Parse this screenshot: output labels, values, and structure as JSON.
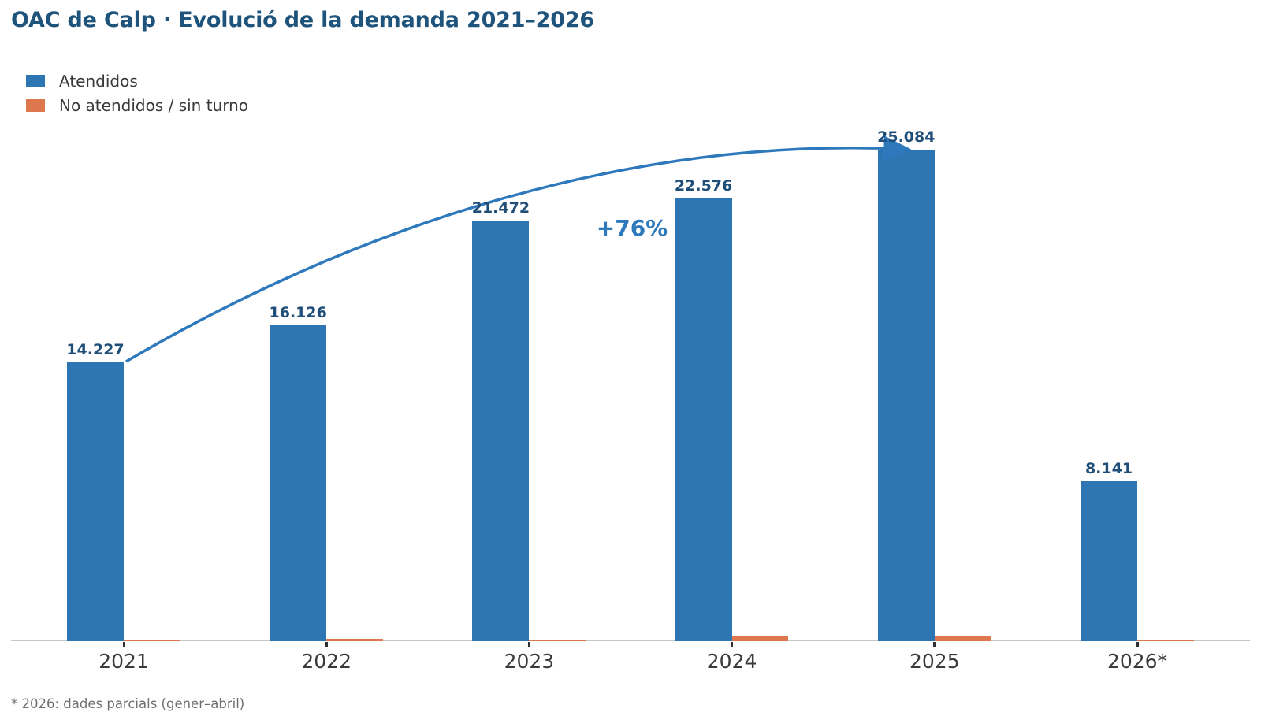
{
  "chart": {
    "title": "OAC de Calp · Evolució de la demanda 2021–2026",
    "title_color": "#1e537c",
    "accent_color": "#2e78bc",
    "growth_label": "+76%",
    "footnote": "* 2026: dades parcials (gener–abril)",
    "legend": [
      {
        "label": "Atendidos",
        "color": "#2e75b4"
      },
      {
        "label": "No atendidos / sin turno",
        "color": "#de764e"
      }
    ]
  },
  "chart_data": {
    "type": "bar",
    "categories": [
      "2021",
      "2022",
      "2023",
      "2024",
      "2025",
      "2026*"
    ],
    "series": [
      {
        "name": "Atendidos",
        "color": "#2e75b4",
        "values": [
          14227,
          16126,
          21472,
          22576,
          25084,
          8141
        ],
        "labels": [
          "14.227",
          "16.126",
          "21.472",
          "22.576",
          "25.084",
          "8.141"
        ]
      },
      {
        "name": "No atendidos / sin turno",
        "color": "#de764e",
        "values": [
          90,
          130,
          85,
          290,
          300,
          45
        ],
        "estimated_from_pixels": true
      }
    ],
    "annotations": [
      {
        "text": "+76%",
        "type": "curved-arrow",
        "from_category": "2021",
        "to_category": "2025"
      }
    ],
    "ylim": [
      0,
      26000
    ],
    "grid": false,
    "y_axis_visible": false,
    "legend_position": "top-left",
    "value_label_format": "thousands separated by dot"
  }
}
